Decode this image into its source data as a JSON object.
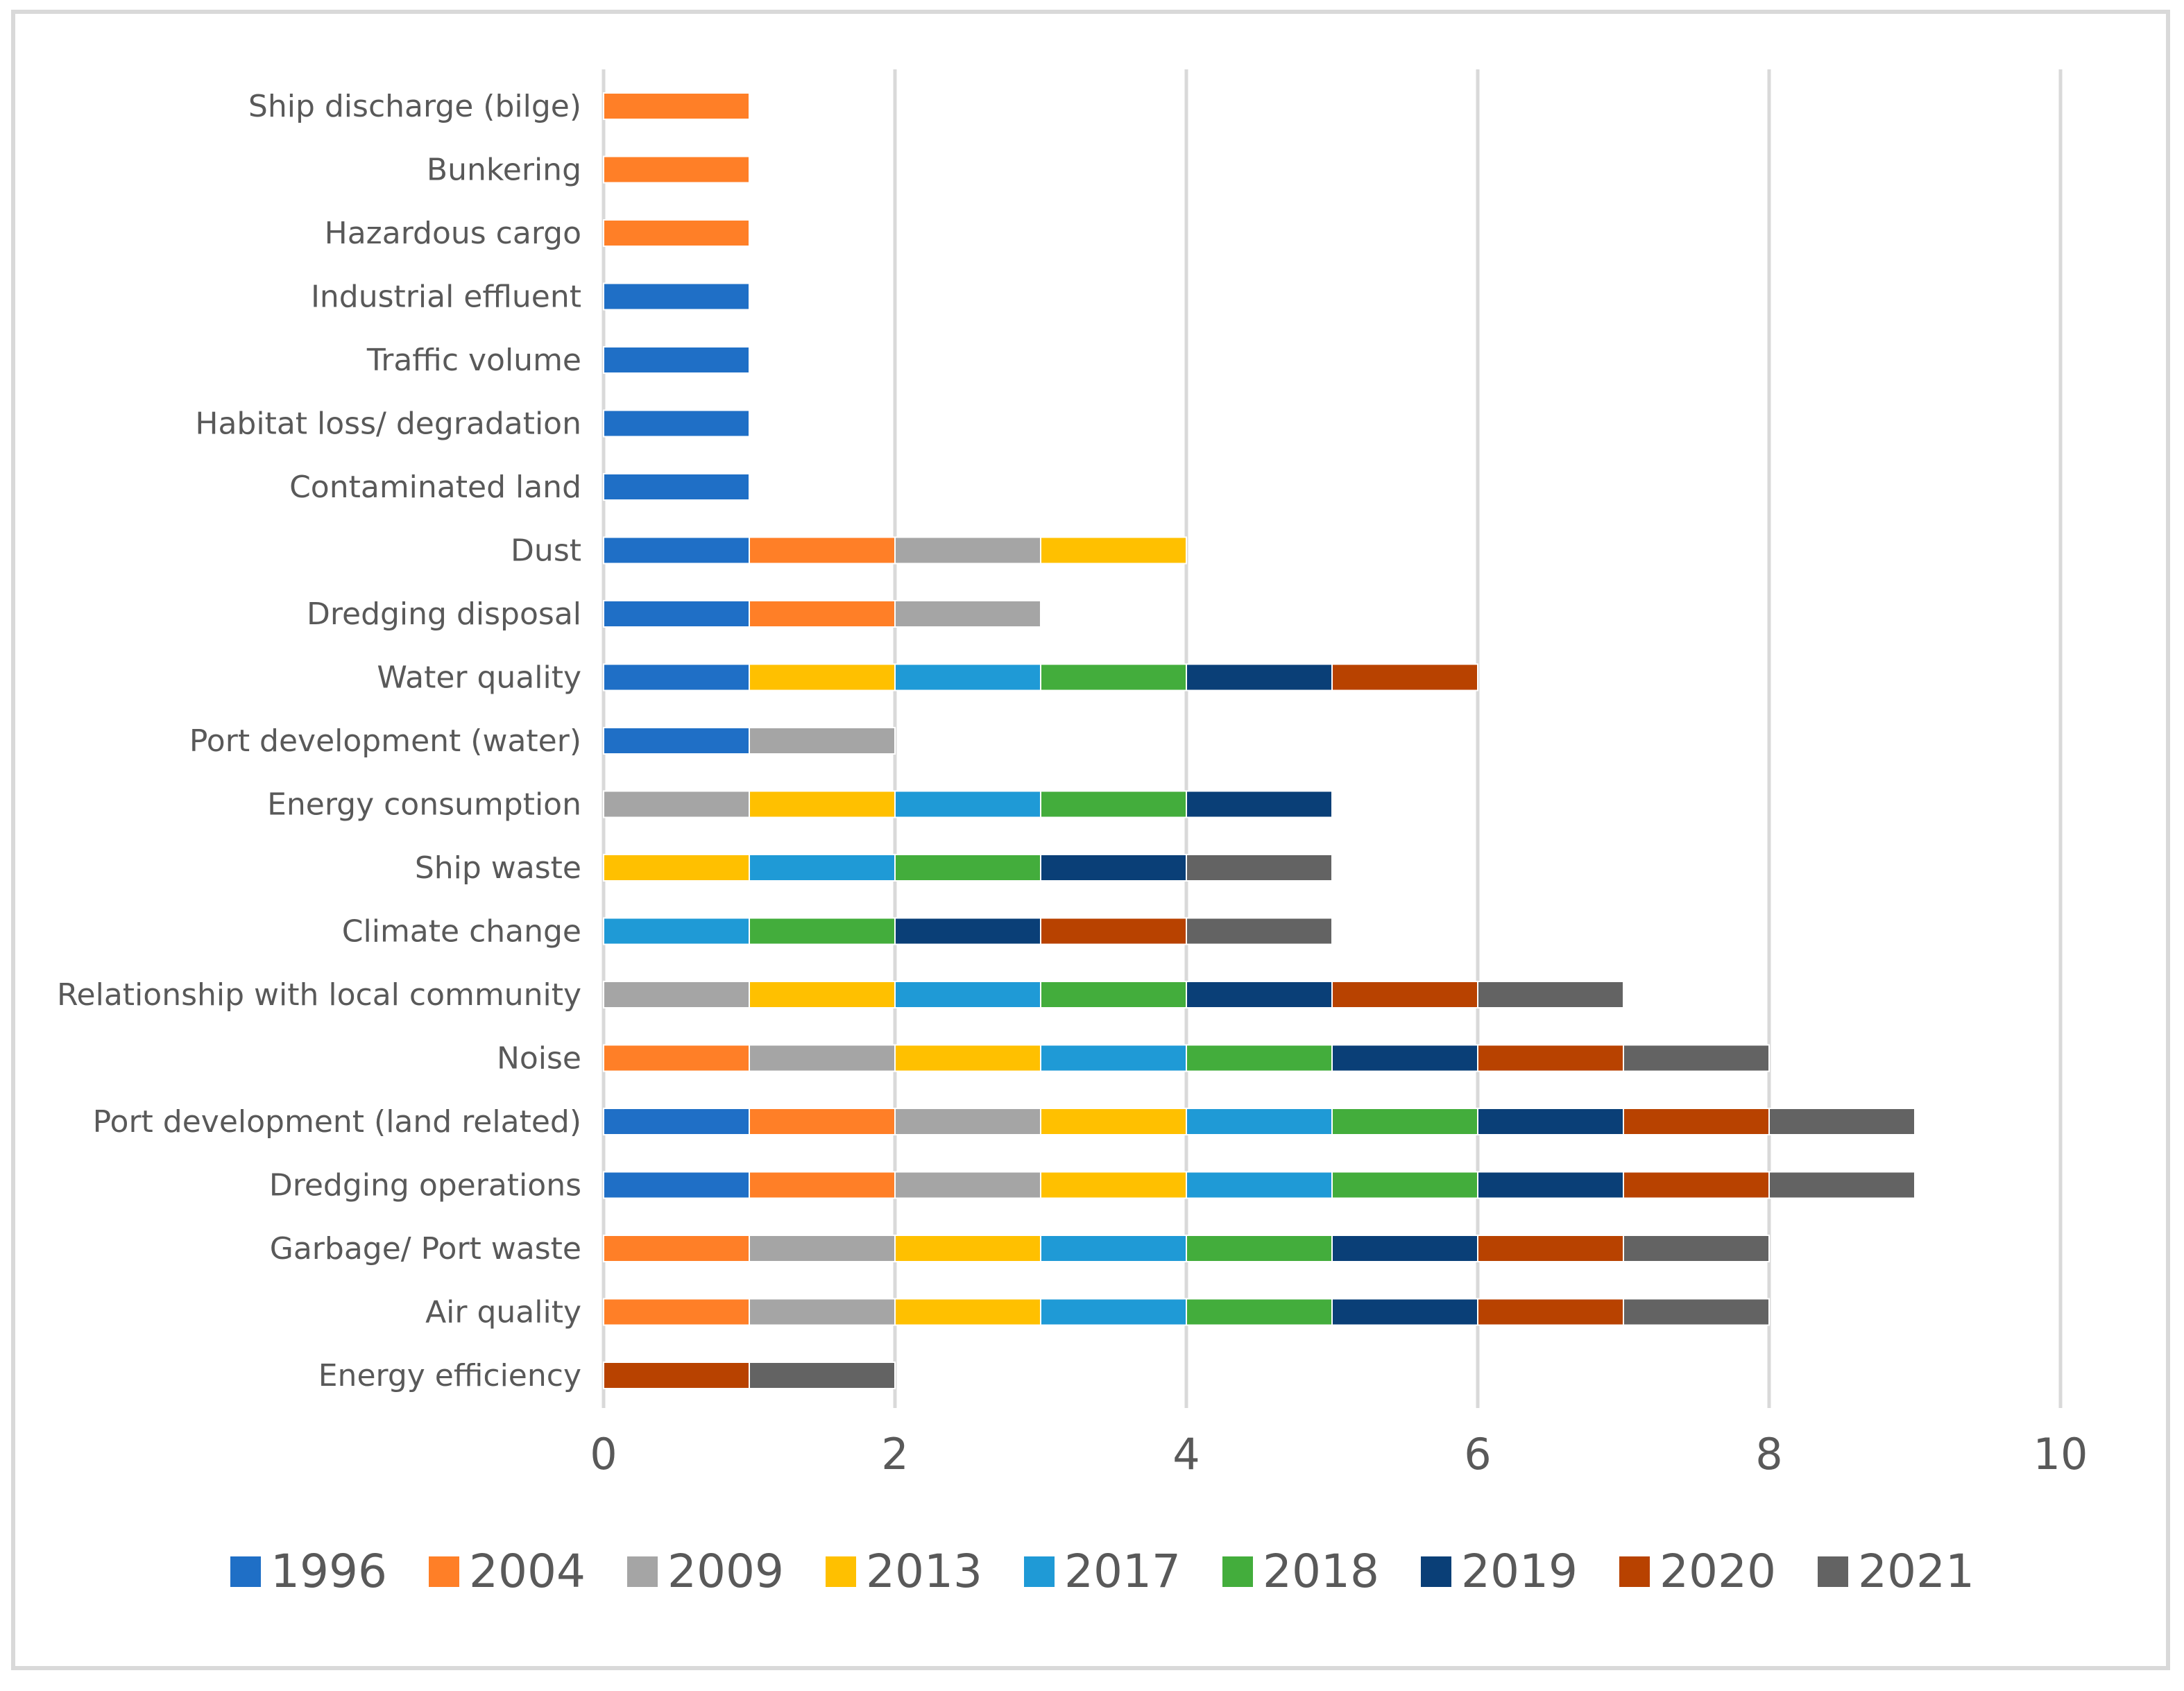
{
  "chart_data": {
    "type": "bar",
    "orientation": "horizontal",
    "stacked": true,
    "title": "",
    "xlabel": "",
    "ylabel": "",
    "xlim": [
      0,
      10
    ],
    "x_ticks": [
      0,
      2,
      4,
      6,
      8,
      10
    ],
    "grid": "vertical",
    "legend_position": "bottom",
    "categories": [
      "Ship discharge (bilge)",
      "Bunkering",
      "Hazardous cargo",
      "Industrial effluent",
      "Traffic volume",
      "Habitat loss/ degradation",
      "Contaminated land",
      "Dust",
      "Dredging disposal",
      "Water quality",
      "Port development (water)",
      "Energy consumption",
      "Ship waste",
      "Climate change",
      "Relationship with local community",
      "Noise",
      "Port development (land related)",
      "Dredging operations",
      "Garbage/ Port waste",
      "Air quality",
      "Energy efficiency"
    ],
    "series": [
      {
        "name": "1996",
        "color": "#1f6fc6",
        "values": [
          0,
          0,
          0,
          1,
          1,
          1,
          1,
          1,
          1,
          1,
          1,
          0,
          0,
          0,
          0,
          0,
          1,
          1,
          0,
          0,
          0
        ]
      },
      {
        "name": "2004",
        "color": "#ff7f27",
        "values": [
          1,
          1,
          1,
          0,
          0,
          0,
          0,
          1,
          1,
          0,
          0,
          0,
          0,
          0,
          0,
          1,
          1,
          1,
          1,
          1,
          0
        ]
      },
      {
        "name": "2009",
        "color": "#a5a5a5",
        "values": [
          0,
          0,
          0,
          0,
          0,
          0,
          0,
          1,
          1,
          0,
          1,
          1,
          0,
          0,
          1,
          1,
          1,
          1,
          1,
          1,
          0
        ]
      },
      {
        "name": "2013",
        "color": "#ffc000",
        "values": [
          0,
          0,
          0,
          0,
          0,
          0,
          0,
          1,
          0,
          1,
          0,
          1,
          1,
          0,
          1,
          1,
          1,
          1,
          1,
          1,
          0
        ]
      },
      {
        "name": "2017",
        "color": "#1f9ad6",
        "values": [
          0,
          0,
          0,
          0,
          0,
          0,
          0,
          0,
          0,
          1,
          0,
          1,
          1,
          1,
          1,
          1,
          1,
          1,
          1,
          1,
          0
        ]
      },
      {
        "name": "2018",
        "color": "#43ad3c",
        "values": [
          0,
          0,
          0,
          0,
          0,
          0,
          0,
          0,
          0,
          1,
          0,
          1,
          1,
          1,
          1,
          1,
          1,
          1,
          1,
          1,
          0
        ]
      },
      {
        "name": "2019",
        "color": "#0a3f77",
        "values": [
          0,
          0,
          0,
          0,
          0,
          0,
          0,
          0,
          0,
          1,
          0,
          1,
          1,
          1,
          1,
          1,
          1,
          1,
          1,
          1,
          0
        ]
      },
      {
        "name": "2020",
        "color": "#b84200",
        "values": [
          0,
          0,
          0,
          0,
          0,
          0,
          0,
          0,
          0,
          1,
          0,
          0,
          0,
          1,
          1,
          1,
          1,
          1,
          1,
          1,
          1
        ]
      },
      {
        "name": "2021",
        "color": "#636363",
        "values": [
          0,
          0,
          0,
          0,
          0,
          0,
          0,
          0,
          0,
          0,
          0,
          0,
          1,
          1,
          1,
          1,
          1,
          1,
          1,
          1,
          1
        ]
      }
    ]
  }
}
